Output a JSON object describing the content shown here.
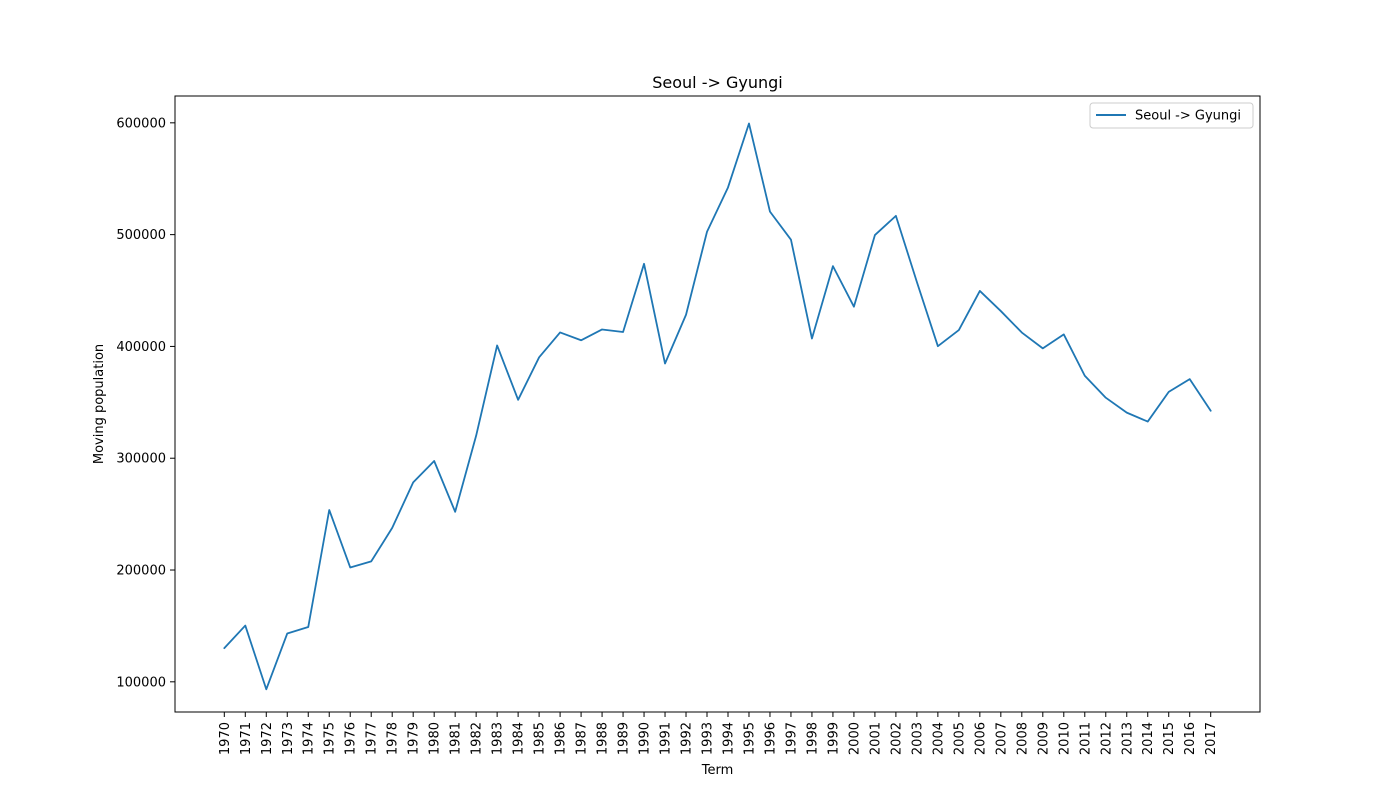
{
  "chart_data": {
    "type": "line",
    "title": "Seoul -> Gyungi",
    "xlabel": "Term",
    "ylabel": "Moving population",
    "x": [
      "1970",
      "1971",
      "1972",
      "1973",
      "1974",
      "1975",
      "1976",
      "1977",
      "1978",
      "1979",
      "1980",
      "1981",
      "1982",
      "1983",
      "1984",
      "1985",
      "1986",
      "1987",
      "1988",
      "1989",
      "1990",
      "1991",
      "1992",
      "1993",
      "1994",
      "1995",
      "1996",
      "1997",
      "1998",
      "1999",
      "2000",
      "2001",
      "2002",
      "2003",
      "2004",
      "2005",
      "2006",
      "2007",
      "2008",
      "2009",
      "2010",
      "2011",
      "2012",
      "2013",
      "2014",
      "2015",
      "2016",
      "2017"
    ],
    "series": [
      {
        "name": "Seoul -> Gyungi",
        "color": "#1f77b4",
        "values": [
          130149,
          150313,
          93333,
          143234,
          149045,
          253705,
          202276,
          207722,
          237684,
          278411,
          297539,
          252073,
          320174,
          400875,
          352238,
          390265,
          412535,
          405495,
          415174,
          412933,
          473889,
          384714,
          428344,
          502584,
          542204,
          599411,
          520566,
          495454,
          407050,
          471841,
          435573,
          499575,
          516765,
          457656,
          400206,
          414621,
          449632,
          431637,
          412408,
          398282,
          410735,
          373771,
          354135,
          340801,
          332785,
          359337,
          370760,
          342433
        ]
      }
    ],
    "yticks": [
      100000,
      200000,
      300000,
      400000,
      500000,
      600000
    ],
    "ylim": [
      73000,
      624000
    ],
    "grid": false,
    "legend_position": "top-right"
  }
}
